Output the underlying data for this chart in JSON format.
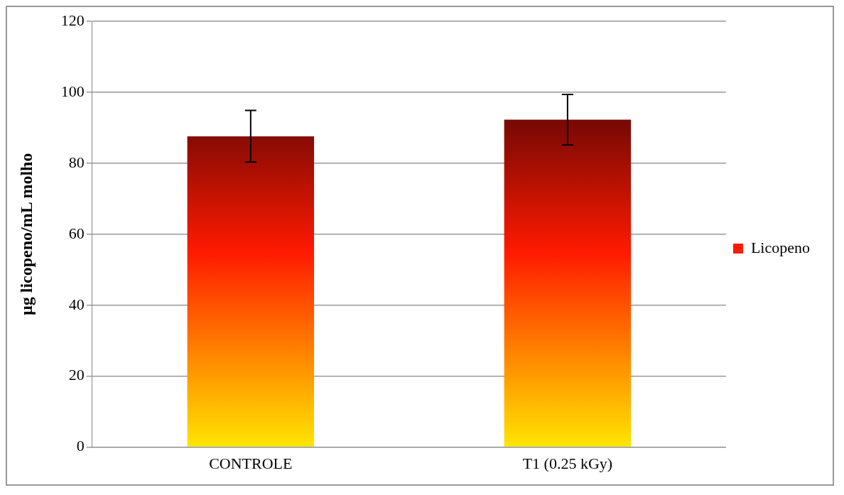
{
  "chart_data": {
    "type": "bar",
    "ylabel": "µg licopeno/mL molho",
    "categories": [
      "CONTROLE",
      "T1 (0.25 kGy)"
    ],
    "series": [
      {
        "name": "Licopeno",
        "color": "#ff1a00",
        "values": [
          87.6,
          92.3
        ],
        "errors": [
          7.3,
          7.1
        ]
      }
    ],
    "ylim": [
      0,
      120
    ],
    "yticks": [
      0,
      20,
      40,
      60,
      80,
      100,
      120
    ],
    "grid": "y",
    "legend": "right"
  }
}
